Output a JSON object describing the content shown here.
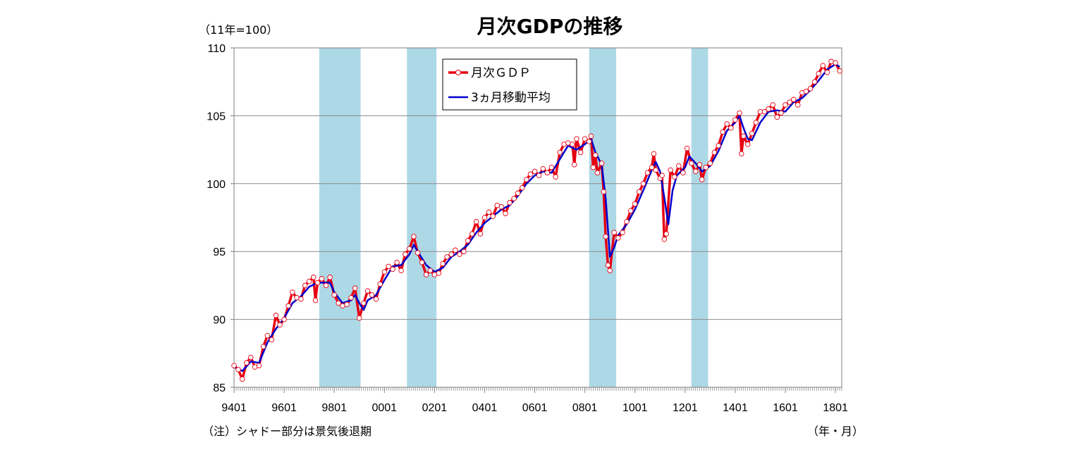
{
  "chart_data": {
    "type": "line",
    "title": "月次GDPの推移",
    "ylabel": "（11年=100）",
    "xlabel": "（年・月）",
    "note": "（注）シャドー部分は景気後退期",
    "ylim": [
      85,
      110
    ],
    "yticks": [
      "85",
      "90",
      "95",
      "100",
      "105",
      "110"
    ],
    "xlim": [
      1994,
      2018.25
    ],
    "xticks": [
      {
        "label": "9401",
        "x": 1994
      },
      {
        "label": "9601",
        "x": 1996
      },
      {
        "label": "9801",
        "x": 1998
      },
      {
        "label": "0001",
        "x": 2000
      },
      {
        "label": "0201",
        "x": 2002
      },
      {
        "label": "0401",
        "x": 2004
      },
      {
        "label": "0601",
        "x": 2006
      },
      {
        "label": "0801",
        "x": 2008
      },
      {
        "label": "1001",
        "x": 2010
      },
      {
        "label": "1201",
        "x": 2012
      },
      {
        "label": "1401",
        "x": 2014
      },
      {
        "label": "1601",
        "x": 2016
      },
      {
        "label": "1801",
        "x": 2018
      }
    ],
    "recession_shading": [
      {
        "start": 1997.4,
        "end": 1999.05
      },
      {
        "start": 2000.9,
        "end": 2002.08
      },
      {
        "start": 2008.17,
        "end": 2009.25
      },
      {
        "start": 2012.25,
        "end": 2012.92
      }
    ],
    "legend_placement": "top-center",
    "colors": {
      "monthly": "#e60012",
      "moving_avg": "#0000cc",
      "shade": "#add8e6",
      "grid": "#8c8c8c",
      "axis": "#7f7f7f"
    },
    "series": [
      {
        "name": "月次ＧＤＰ",
        "style": "line-with-open-circles",
        "points": [
          [
            1994.0,
            86.6
          ],
          [
            1994.17,
            86.3
          ],
          [
            1994.33,
            85.6
          ],
          [
            1994.5,
            86.8
          ],
          [
            1994.67,
            87.2
          ],
          [
            1994.83,
            86.5
          ],
          [
            1995.0,
            86.6
          ],
          [
            1995.17,
            88.0
          ],
          [
            1995.33,
            88.8
          ],
          [
            1995.5,
            88.5
          ],
          [
            1995.67,
            90.3
          ],
          [
            1995.83,
            89.6
          ],
          [
            1996.0,
            90.0
          ],
          [
            1996.17,
            91.0
          ],
          [
            1996.33,
            92.0
          ],
          [
            1996.5,
            91.6
          ],
          [
            1996.67,
            91.5
          ],
          [
            1996.83,
            92.5
          ],
          [
            1997.0,
            92.8
          ],
          [
            1997.17,
            93.1
          ],
          [
            1997.25,
            91.4
          ],
          [
            1997.33,
            92.7
          ],
          [
            1997.5,
            93.0
          ],
          [
            1997.67,
            92.5
          ],
          [
            1997.83,
            93.1
          ],
          [
            1998.0,
            91.8
          ],
          [
            1998.17,
            91.2
          ],
          [
            1998.33,
            91.0
          ],
          [
            1998.5,
            91.1
          ],
          [
            1998.67,
            91.6
          ],
          [
            1998.83,
            92.3
          ],
          [
            1999.0,
            90.1
          ],
          [
            1999.17,
            91.2
          ],
          [
            1999.33,
            92.1
          ],
          [
            1999.5,
            91.8
          ],
          [
            1999.67,
            91.5
          ],
          [
            1999.83,
            92.6
          ],
          [
            2000.0,
            93.5
          ],
          [
            2000.17,
            93.9
          ],
          [
            2000.33,
            93.7
          ],
          [
            2000.5,
            94.2
          ],
          [
            2000.67,
            93.6
          ],
          [
            2000.83,
            94.8
          ],
          [
            2001.0,
            95.2
          ],
          [
            2001.17,
            96.1
          ],
          [
            2001.33,
            94.9
          ],
          [
            2001.5,
            94.2
          ],
          [
            2001.67,
            93.3
          ],
          [
            2001.83,
            93.6
          ],
          [
            2002.0,
            93.3
          ],
          [
            2002.17,
            93.4
          ],
          [
            2002.33,
            94.1
          ],
          [
            2002.5,
            94.6
          ],
          [
            2002.67,
            94.8
          ],
          [
            2002.83,
            95.1
          ],
          [
            2003.0,
            94.8
          ],
          [
            2003.17,
            95.0
          ],
          [
            2003.33,
            95.8
          ],
          [
            2003.5,
            96.3
          ],
          [
            2003.67,
            97.2
          ],
          [
            2003.83,
            96.3
          ],
          [
            2004.0,
            97.5
          ],
          [
            2004.17,
            97.9
          ],
          [
            2004.33,
            97.6
          ],
          [
            2004.5,
            98.4
          ],
          [
            2004.67,
            98.3
          ],
          [
            2004.83,
            97.8
          ],
          [
            2005.0,
            98.6
          ],
          [
            2005.17,
            98.9
          ],
          [
            2005.33,
            99.3
          ],
          [
            2005.5,
            99.7
          ],
          [
            2005.67,
            100.3
          ],
          [
            2005.83,
            100.7
          ],
          [
            2006.0,
            100.9
          ],
          [
            2006.17,
            100.6
          ],
          [
            2006.33,
            101.1
          ],
          [
            2006.5,
            100.8
          ],
          [
            2006.67,
            101.2
          ],
          [
            2006.83,
            100.5
          ],
          [
            2007.0,
            102.3
          ],
          [
            2007.17,
            102.9
          ],
          [
            2007.33,
            103.0
          ],
          [
            2007.5,
            102.9
          ],
          [
            2007.58,
            101.4
          ],
          [
            2007.67,
            103.3
          ],
          [
            2007.83,
            102.3
          ],
          [
            2008.0,
            103.3
          ],
          [
            2008.17,
            103.1
          ],
          [
            2008.25,
            103.5
          ],
          [
            2008.33,
            101.2
          ],
          [
            2008.42,
            102.1
          ],
          [
            2008.5,
            100.8
          ],
          [
            2008.67,
            101.5
          ],
          [
            2008.75,
            99.4
          ],
          [
            2008.83,
            96.1
          ],
          [
            2008.92,
            94.0
          ],
          [
            2009.0,
            93.6
          ],
          [
            2009.17,
            96.4
          ],
          [
            2009.33,
            96.0
          ],
          [
            2009.5,
            96.4
          ],
          [
            2009.67,
            97.2
          ],
          [
            2009.83,
            98.0
          ],
          [
            2010.0,
            98.5
          ],
          [
            2010.17,
            99.4
          ],
          [
            2010.33,
            100.0
          ],
          [
            2010.5,
            100.8
          ],
          [
            2010.67,
            101.2
          ],
          [
            2010.75,
            102.2
          ],
          [
            2010.83,
            101.0
          ],
          [
            2011.0,
            100.4
          ],
          [
            2011.08,
            100.6
          ],
          [
            2011.17,
            95.9
          ],
          [
            2011.25,
            96.3
          ],
          [
            2011.42,
            101.0
          ],
          [
            2011.58,
            100.5
          ],
          [
            2011.75,
            101.3
          ],
          [
            2011.92,
            100.8
          ],
          [
            2012.08,
            102.6
          ],
          [
            2012.25,
            101.5
          ],
          [
            2012.42,
            100.9
          ],
          [
            2012.58,
            101.4
          ],
          [
            2012.67,
            100.3
          ],
          [
            2012.83,
            101.2
          ],
          [
            2013.0,
            101.5
          ],
          [
            2013.17,
            102.3
          ],
          [
            2013.33,
            102.8
          ],
          [
            2013.5,
            103.8
          ],
          [
            2013.67,
            104.4
          ],
          [
            2013.83,
            104.1
          ],
          [
            2014.0,
            104.7
          ],
          [
            2014.17,
            105.2
          ],
          [
            2014.25,
            102.2
          ],
          [
            2014.33,
            103.5
          ],
          [
            2014.5,
            102.9
          ],
          [
            2014.67,
            103.7
          ],
          [
            2014.83,
            104.5
          ],
          [
            2015.0,
            105.3
          ],
          [
            2015.17,
            105.3
          ],
          [
            2015.33,
            105.5
          ],
          [
            2015.5,
            105.8
          ],
          [
            2015.67,
            104.9
          ],
          [
            2015.83,
            105.2
          ],
          [
            2016.0,
            105.8
          ],
          [
            2016.17,
            106.0
          ],
          [
            2016.33,
            106.2
          ],
          [
            2016.5,
            105.8
          ],
          [
            2016.67,
            106.7
          ],
          [
            2016.83,
            106.8
          ],
          [
            2017.0,
            107.0
          ],
          [
            2017.17,
            107.5
          ],
          [
            2017.33,
            108.1
          ],
          [
            2017.5,
            108.7
          ],
          [
            2017.67,
            108.2
          ],
          [
            2017.83,
            109.0
          ],
          [
            2018.0,
            108.9
          ],
          [
            2018.17,
            108.3
          ]
        ]
      },
      {
        "name": "3ヵ月移動平均",
        "style": "line",
        "points": [
          [
            1994.0,
            86.5
          ],
          [
            1994.33,
            86.2
          ],
          [
            1994.67,
            86.9
          ],
          [
            1995.0,
            86.8
          ],
          [
            1995.33,
            88.3
          ],
          [
            1995.67,
            89.3
          ],
          [
            1996.0,
            90.1
          ],
          [
            1996.33,
            91.2
          ],
          [
            1996.67,
            91.7
          ],
          [
            1997.0,
            92.4
          ],
          [
            1997.33,
            92.7
          ],
          [
            1997.67,
            92.7
          ],
          [
            1997.83,
            92.7
          ],
          [
            1998.0,
            92.0
          ],
          [
            1998.33,
            91.2
          ],
          [
            1998.67,
            91.4
          ],
          [
            1998.83,
            91.8
          ],
          [
            1999.0,
            91.2
          ],
          [
            1999.17,
            90.7
          ],
          [
            1999.33,
            91.4
          ],
          [
            1999.67,
            91.8
          ],
          [
            2000.0,
            92.9
          ],
          [
            2000.33,
            93.9
          ],
          [
            2000.67,
            94.0
          ],
          [
            2001.0,
            94.8
          ],
          [
            2001.17,
            95.5
          ],
          [
            2001.33,
            95.0
          ],
          [
            2001.67,
            94.0
          ],
          [
            2002.0,
            93.5
          ],
          [
            2002.33,
            93.8
          ],
          [
            2002.67,
            94.6
          ],
          [
            2003.0,
            95.0
          ],
          [
            2003.33,
            95.5
          ],
          [
            2003.67,
            96.4
          ],
          [
            2004.0,
            97.1
          ],
          [
            2004.33,
            97.6
          ],
          [
            2004.67,
            98.1
          ],
          [
            2005.0,
            98.4
          ],
          [
            2005.33,
            99.1
          ],
          [
            2005.67,
            100.0
          ],
          [
            2006.0,
            100.6
          ],
          [
            2006.33,
            100.9
          ],
          [
            2006.67,
            100.8
          ],
          [
            2007.0,
            101.8
          ],
          [
            2007.33,
            102.8
          ],
          [
            2007.67,
            102.5
          ],
          [
            2008.0,
            102.9
          ],
          [
            2008.25,
            103.3
          ],
          [
            2008.42,
            102.3
          ],
          [
            2008.67,
            101.4
          ],
          [
            2008.83,
            98.9
          ],
          [
            2009.0,
            94.6
          ],
          [
            2009.17,
            95.3
          ],
          [
            2009.33,
            96.2
          ],
          [
            2009.67,
            97.0
          ],
          [
            2010.0,
            98.1
          ],
          [
            2010.33,
            99.5
          ],
          [
            2010.67,
            101.0
          ],
          [
            2010.83,
            101.6
          ],
          [
            2011.0,
            100.9
          ],
          [
            2011.17,
            99.0
          ],
          [
            2011.33,
            97.0
          ],
          [
            2011.5,
            99.5
          ],
          [
            2011.67,
            100.6
          ],
          [
            2012.0,
            101.2
          ],
          [
            2012.17,
            102.0
          ],
          [
            2012.42,
            101.5
          ],
          [
            2012.67,
            100.9
          ],
          [
            2013.0,
            101.3
          ],
          [
            2013.33,
            102.4
          ],
          [
            2013.67,
            103.9
          ],
          [
            2014.0,
            104.5
          ],
          [
            2014.17,
            105.0
          ],
          [
            2014.33,
            104.1
          ],
          [
            2014.5,
            103.3
          ],
          [
            2014.67,
            103.2
          ],
          [
            2015.0,
            104.5
          ],
          [
            2015.33,
            105.3
          ],
          [
            2015.67,
            105.4
          ],
          [
            2016.0,
            105.3
          ],
          [
            2016.33,
            106.0
          ],
          [
            2016.67,
            106.3
          ],
          [
            2017.0,
            106.9
          ],
          [
            2017.33,
            107.6
          ],
          [
            2017.67,
            108.4
          ],
          [
            2018.0,
            108.8
          ],
          [
            2018.17,
            108.6
          ]
        ]
      }
    ]
  }
}
